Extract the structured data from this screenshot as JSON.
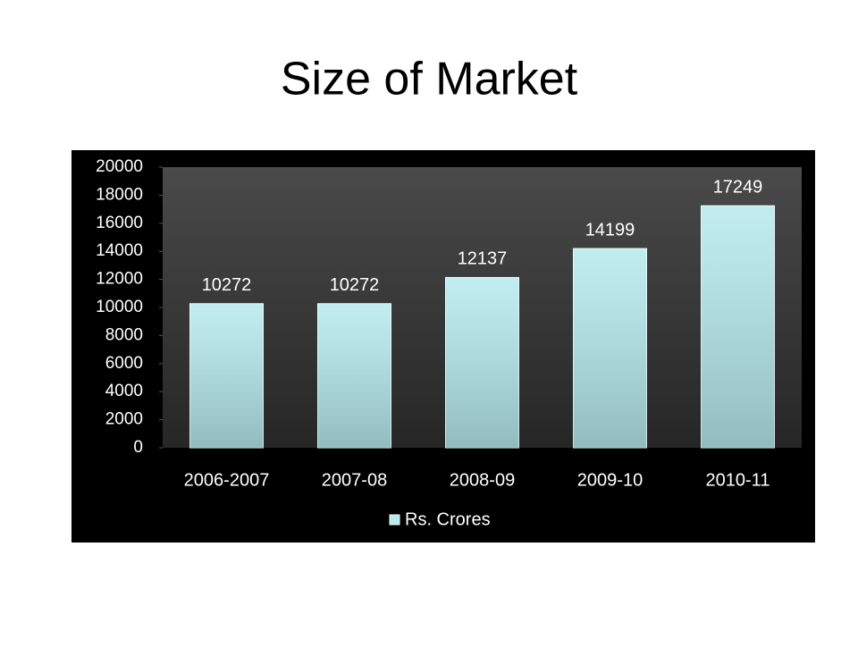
{
  "chart_data": {
    "type": "bar",
    "title": "Size of Market",
    "categories": [
      "2006-2007",
      "2007-08",
      "2008-09",
      "2009-10",
      "2010-11"
    ],
    "series": [
      {
        "name": "Rs. Crores",
        "color": "#b6eaee",
        "values": [
          10272,
          10272,
          12137,
          14199,
          17249
        ]
      }
    ],
    "ylim": [
      0,
      20000
    ],
    "yticks": [
      0,
      2000,
      4000,
      6000,
      8000,
      10000,
      12000,
      14000,
      16000,
      18000,
      20000
    ],
    "data_labels": true,
    "legend": "bottom"
  }
}
